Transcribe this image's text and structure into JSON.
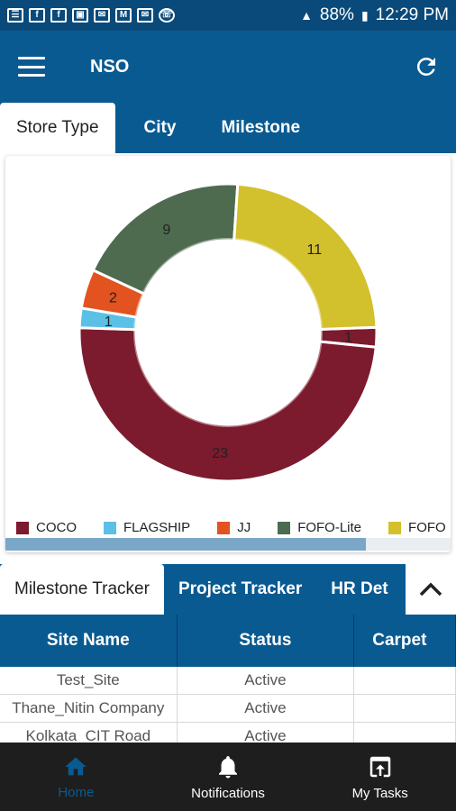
{
  "status_bar": {
    "battery": "88%",
    "time": "12:29 PM"
  },
  "app_bar": {
    "title": "NSO",
    "menu_icon": "menu-icon",
    "refresh_icon": "refresh-icon"
  },
  "top_tabs": [
    {
      "label": "Store Type",
      "active": true
    },
    {
      "label": "City",
      "active": false
    },
    {
      "label": "Milestone",
      "active": false
    }
  ],
  "chart_data": {
    "type": "pie",
    "donut": true,
    "slices": [
      {
        "label": "COCO",
        "value": 1,
        "color": "#7c1a2e"
      },
      {
        "label": "COCO",
        "value": 23,
        "color": "#7c1a2e"
      },
      {
        "label": "FLAGSHIP",
        "value": 1,
        "color": "#5bc0e6"
      },
      {
        "label": "JJ",
        "value": 2,
        "color": "#e2531f"
      },
      {
        "label": "FOFO-Lite",
        "value": 9,
        "color": "#4e6b4f"
      },
      {
        "label": "FOFO",
        "value": 11,
        "color": "#d2c02c"
      }
    ],
    "legend": [
      {
        "label": "COCO",
        "color": "#7c1a2e"
      },
      {
        "label": "FLAGSHIP",
        "color": "#5bc0e6"
      },
      {
        "label": "JJ",
        "color": "#e2531f"
      },
      {
        "label": "FOFO-Lite",
        "color": "#4e6b4f"
      },
      {
        "label": "FOFO",
        "color": "#d2c02c"
      }
    ]
  },
  "bottom_tabs": [
    {
      "label": "Milestone Tracker",
      "active": true
    },
    {
      "label": "Project Tracker",
      "active": false
    },
    {
      "label": "HR Det",
      "active": false
    }
  ],
  "table": {
    "headers": [
      "Site Name",
      "Status",
      "Carpet"
    ],
    "rows": [
      [
        "Test_Site",
        "Active",
        ""
      ],
      [
        "Thane_Nitin Company",
        "Active",
        ""
      ],
      [
        "Kolkata_CIT Road",
        "Active",
        ""
      ]
    ]
  },
  "bottom_nav": [
    {
      "label": "Home",
      "icon": "home-icon",
      "active": true
    },
    {
      "label": "Notifications",
      "icon": "bell-icon",
      "active": false
    },
    {
      "label": "My Tasks",
      "icon": "tasks-icon",
      "active": false
    }
  ]
}
